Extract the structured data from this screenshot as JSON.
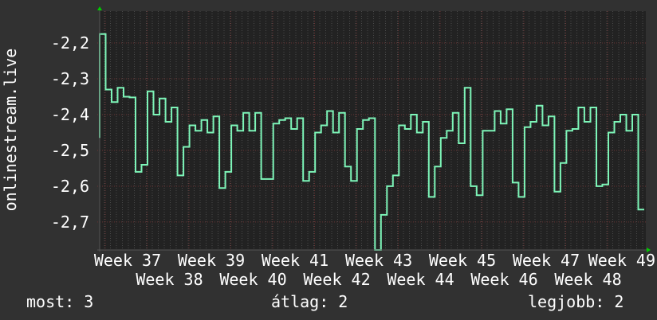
{
  "chart_data": {
    "type": "line",
    "step": true,
    "ylabel": "onlinestream.live",
    "xlabel": "",
    "ylim": [
      -2.778,
      -2.111
    ],
    "yticks": [
      -2.2,
      -2.3,
      -2.4,
      -2.5,
      -2.6,
      -2.7
    ],
    "ytick_labels": [
      "-2,2",
      "-2,3",
      "-2,4",
      "-2,5",
      "-2,6",
      "-2,7"
    ],
    "xtick_labels": [
      "Week 37",
      "Week 38",
      "Week 39",
      "Week 40",
      "Week 41",
      "Week 42",
      "Week 43",
      "Week 44",
      "Week 45",
      "Week 46",
      "Week 47",
      "Week 48",
      "Week 49"
    ],
    "grid": true,
    "start_value": -2.465,
    "values": [
      -2.175,
      -2.33,
      -2.365,
      -2.325,
      -2.35,
      -2.352,
      -2.56,
      -2.54,
      -2.335,
      -2.4,
      -2.355,
      -2.42,
      -2.38,
      -2.57,
      -2.49,
      -2.43,
      -2.445,
      -2.415,
      -2.45,
      -2.405,
      -2.605,
      -2.56,
      -2.43,
      -2.445,
      -2.395,
      -2.445,
      -2.395,
      -2.58,
      -2.58,
      -2.425,
      -2.415,
      -2.41,
      -2.44,
      -2.41,
      -2.585,
      -2.56,
      -2.45,
      -2.43,
      -2.39,
      -2.45,
      -2.395,
      -2.545,
      -2.585,
      -2.44,
      -2.415,
      -2.41,
      -2.78,
      -2.68,
      -2.6,
      -2.57,
      -2.43,
      -2.44,
      -2.4,
      -2.45,
      -2.42,
      -2.63,
      -2.545,
      -2.465,
      -2.445,
      -2.395,
      -2.48,
      -2.325,
      -2.6,
      -2.625,
      -2.445,
      -2.445,
      -2.39,
      -2.425,
      -2.385,
      -2.59,
      -2.63,
      -2.435,
      -2.42,
      -2.375,
      -2.43,
      -2.405,
      -2.615,
      -2.535,
      -2.445,
      -2.44,
      -2.38,
      -2.42,
      -2.38,
      -2.6,
      -2.595,
      -2.45,
      -2.42,
      -2.4,
      -2.445,
      -2.4,
      -2.665
    ],
    "colors": {
      "line": "#7df5b8",
      "background": "#313131",
      "plot": "#222222",
      "major_grid": "#6a3232",
      "minor_grid": "#4a4a4a",
      "arrow": "#00cc00"
    }
  },
  "legend": {
    "current": "most: 3",
    "average": "átlag: 2",
    "max": "legjobb: 2"
  }
}
